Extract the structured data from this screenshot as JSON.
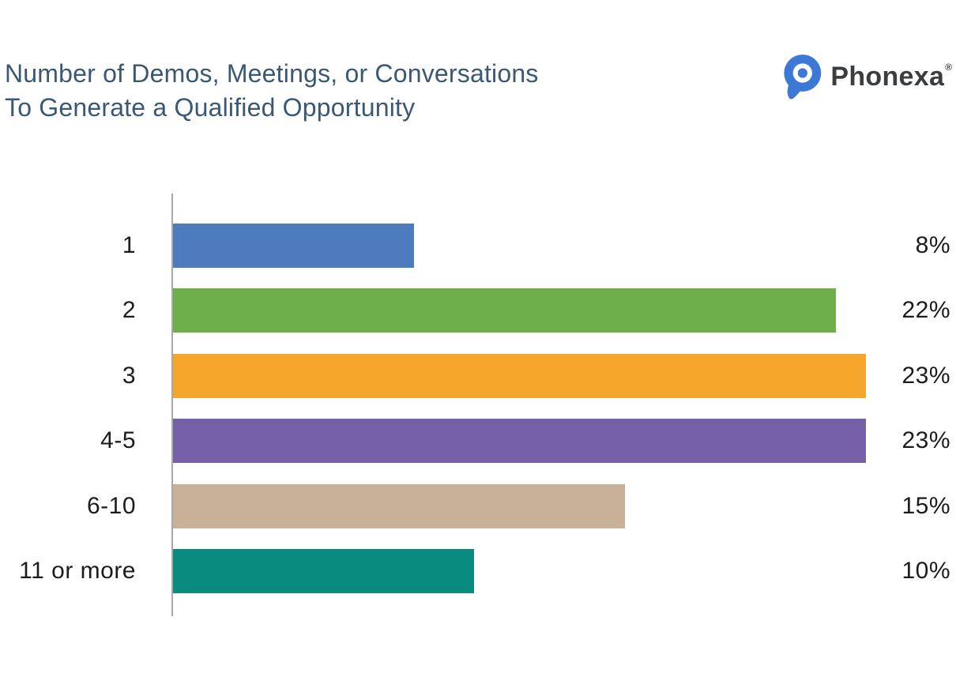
{
  "title": {
    "line1": "Number of Demos, Meetings, or Conversations",
    "line2": "To Generate a Qualified Opportunity"
  },
  "logo": {
    "brand": "Phonexa",
    "registered": "®",
    "icon": "phonexa-pin-icon",
    "icon_color": "#3C79D6",
    "text_color": "#3B3E40"
  },
  "chart_data": {
    "type": "bar",
    "orientation": "horizontal",
    "title": "Number of Demos, Meetings, or Conversations To Generate a Qualified Opportunity",
    "categories": [
      "1",
      "2",
      "3",
      "4-5",
      "6-10",
      "11 or more"
    ],
    "values": [
      8,
      22,
      23,
      23,
      15,
      10
    ],
    "value_labels": [
      "8%",
      "22%",
      "23%",
      "23%",
      "15%",
      "10%"
    ],
    "value_suffix": "%",
    "bar_colors": [
      "#4E7BBE",
      "#6FAF4B",
      "#F4A62A",
      "#7560A8",
      "#C7B299",
      "#0A8B80"
    ],
    "xlabel": "",
    "ylabel": "",
    "xlim": [
      0,
      23
    ],
    "grid": false,
    "legend": false,
    "value_label_position": "right-margin",
    "category_label_position": "left"
  },
  "colors": {
    "title_text": "#3A5876",
    "label_text": "#1C1C1C",
    "axis_line": "#A8A8A8",
    "background": "#FFFFFF"
  }
}
